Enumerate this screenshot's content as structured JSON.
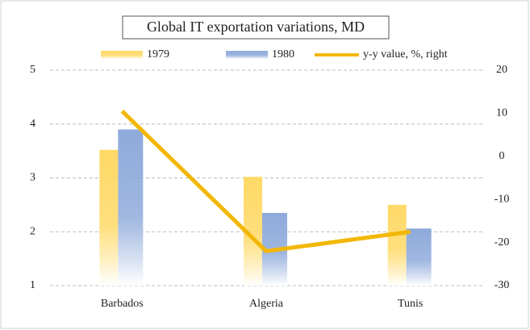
{
  "chart_data": {
    "type": "bar",
    "title": "Global IT exportation variations, MD",
    "categories": [
      "Barbados",
      "Algeria",
      "Tunis"
    ],
    "series": [
      {
        "name": "1979",
        "color": "#ffd966",
        "values": [
          3.52,
          3.02,
          2.5
        ]
      },
      {
        "name": "1980",
        "color": "#8eaadb",
        "values": [
          3.9,
          2.35,
          2.06
        ]
      },
      {
        "name": "y-y value, %, right",
        "color": "#f2b705",
        "values": [
          10.5,
          -22,
          -17.5
        ],
        "axis": "y2"
      }
    ],
    "ylim": [
      1,
      5
    ],
    "yticks": [
      1,
      2,
      3,
      4,
      5
    ],
    "y2lim": [
      -30,
      20
    ],
    "y2ticks": [
      -30,
      -20,
      -10,
      0,
      10,
      20
    ],
    "grid": true
  }
}
